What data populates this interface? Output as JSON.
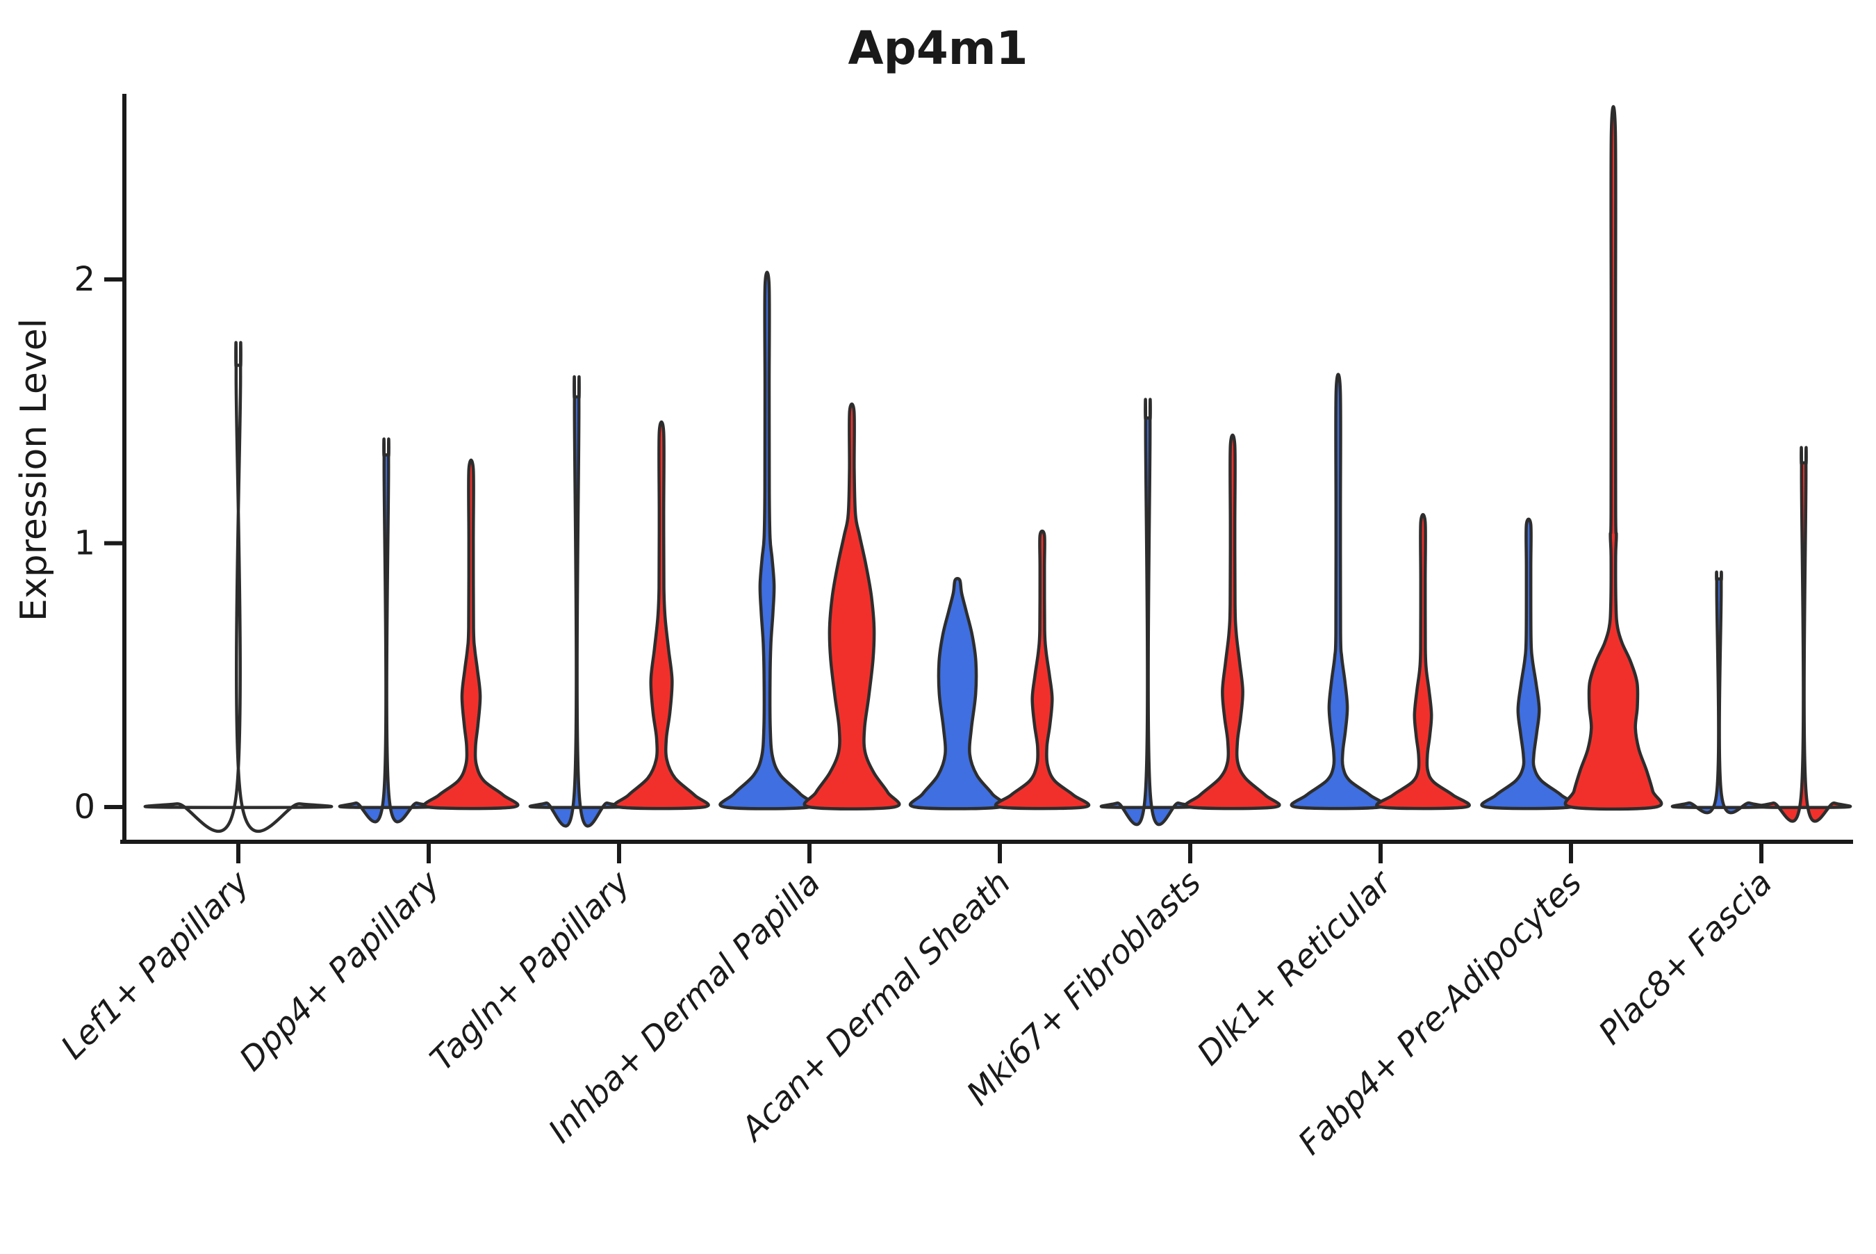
{
  "page": {
    "background": "#ffffff"
  },
  "chart_data": {
    "type": "violin",
    "title": "Ap4m1",
    "ylabel": "Expression Level",
    "xlabel": "",
    "yticks": [
      "0",
      "1",
      "2"
    ],
    "ytick_values": [
      0,
      1,
      2
    ],
    "ylim": [
      0,
      2.7
    ],
    "grid": false,
    "legend": null,
    "x_label_rotation_deg": 45,
    "split_colors": {
      "blue": "#3F6FE0",
      "red": "#F2302B"
    },
    "outline_color": "#2D2D2D",
    "axis_color": "#1A1A1A",
    "categories": [
      "Lef1+ Papillary",
      "Dpp4+ Papillary",
      "Tagln+ Papillary",
      "Inhba+ Dermal Papilla",
      "Acan+ Dermal Sheath",
      "Mki67+ Fibroblasts",
      "Dlk1+ Reticular",
      "Fabp4+ Pre-Adipocytes",
      "Plac8+ Fascia"
    ],
    "violins": [
      {
        "category_index": 0,
        "slot": "center",
        "split": null,
        "max_expression": 1.67,
        "profile": [
          [
            0,
            1
          ],
          [
            0.012,
            0.72
          ],
          [
            0.032,
            0.03
          ],
          [
            1.63,
            0.026
          ],
          [
            1.67,
            0.026
          ]
        ]
      },
      {
        "category_index": 1,
        "slot": "left",
        "split": "blue",
        "max_expression": 1.33,
        "profile": [
          [
            0,
            1
          ],
          [
            0.015,
            0.72
          ],
          [
            0.045,
            0.06
          ],
          [
            1.29,
            0.052
          ],
          [
            1.33,
            0.052
          ]
        ]
      },
      {
        "category_index": 1,
        "slot": "right",
        "split": "red",
        "max_expression": 1.28,
        "profile": [
          [
            0,
            1
          ],
          [
            0.045,
            0.76
          ],
          [
            0.1,
            0.3
          ],
          [
            0.16,
            0.125
          ],
          [
            0.23,
            0.105
          ],
          [
            0.31,
            0.16
          ],
          [
            0.42,
            0.215
          ],
          [
            0.52,
            0.15
          ],
          [
            0.6,
            0.085
          ],
          [
            0.68,
            0.058
          ],
          [
            1.0,
            0.052
          ],
          [
            1.28,
            0.052
          ]
        ]
      },
      {
        "category_index": 2,
        "slot": "left",
        "split": "blue",
        "max_expression": 1.55,
        "profile": [
          [
            0,
            1
          ],
          [
            0.015,
            0.72
          ],
          [
            0.045,
            0.06
          ],
          [
            1.51,
            0.052
          ],
          [
            1.55,
            0.052
          ]
        ]
      },
      {
        "category_index": 2,
        "slot": "right",
        "split": "red",
        "max_expression": 1.42,
        "profile": [
          [
            0,
            1
          ],
          [
            0.045,
            0.78
          ],
          [
            0.11,
            0.32
          ],
          [
            0.18,
            0.125
          ],
          [
            0.26,
            0.115
          ],
          [
            0.36,
            0.2
          ],
          [
            0.48,
            0.25
          ],
          [
            0.6,
            0.165
          ],
          [
            0.72,
            0.085
          ],
          [
            0.83,
            0.058
          ],
          [
            1.1,
            0.052
          ],
          [
            1.42,
            0.052
          ]
        ]
      },
      {
        "category_index": 3,
        "slot": "left",
        "split": "blue",
        "max_expression": 1.98,
        "profile": [
          [
            0,
            1
          ],
          [
            0.05,
            0.78
          ],
          [
            0.12,
            0.32
          ],
          [
            0.19,
            0.13
          ],
          [
            0.3,
            0.075
          ],
          [
            0.48,
            0.07
          ],
          [
            0.62,
            0.09
          ],
          [
            0.74,
            0.14
          ],
          [
            0.84,
            0.165
          ],
          [
            0.94,
            0.12
          ],
          [
            1.02,
            0.07
          ],
          [
            1.2,
            0.052
          ],
          [
            1.6,
            0.05
          ],
          [
            1.98,
            0.048
          ]
        ]
      },
      {
        "category_index": 3,
        "slot": "right",
        "split": "red",
        "max_expression": 1.5,
        "profile": [
          [
            0,
            1
          ],
          [
            0.055,
            0.85
          ],
          [
            0.13,
            0.52
          ],
          [
            0.21,
            0.31
          ],
          [
            0.3,
            0.3
          ],
          [
            0.42,
            0.4
          ],
          [
            0.56,
            0.5
          ],
          [
            0.68,
            0.525
          ],
          [
            0.8,
            0.46
          ],
          [
            0.92,
            0.33
          ],
          [
            1.03,
            0.18
          ],
          [
            1.11,
            0.085
          ],
          [
            1.28,
            0.056
          ],
          [
            1.5,
            0.052
          ]
        ]
      },
      {
        "category_index": 4,
        "slot": "left",
        "split": "blue",
        "max_expression": 0.86,
        "profile": [
          [
            0,
            1
          ],
          [
            0.05,
            0.82
          ],
          [
            0.12,
            0.46
          ],
          [
            0.2,
            0.29
          ],
          [
            0.3,
            0.33
          ],
          [
            0.43,
            0.43
          ],
          [
            0.55,
            0.435
          ],
          [
            0.65,
            0.35
          ],
          [
            0.74,
            0.21
          ],
          [
            0.81,
            0.1
          ],
          [
            0.86,
            0.055
          ]
        ]
      },
      {
        "category_index": 4,
        "slot": "right",
        "split": "red",
        "max_expression": 1.03,
        "profile": [
          [
            0,
            1
          ],
          [
            0.045,
            0.74
          ],
          [
            0.1,
            0.29
          ],
          [
            0.16,
            0.125
          ],
          [
            0.23,
            0.11
          ],
          [
            0.31,
            0.18
          ],
          [
            0.41,
            0.235
          ],
          [
            0.5,
            0.17
          ],
          [
            0.59,
            0.09
          ],
          [
            0.67,
            0.058
          ],
          [
            0.9,
            0.052
          ],
          [
            1.03,
            0.052
          ]
        ]
      },
      {
        "category_index": 5,
        "slot": "left",
        "split": "blue",
        "max_expression": 1.47,
        "profile": [
          [
            0,
            1
          ],
          [
            0.015,
            0.72
          ],
          [
            0.045,
            0.06
          ],
          [
            1.43,
            0.052
          ],
          [
            1.47,
            0.052
          ]
        ]
      },
      {
        "category_index": 5,
        "slot": "right",
        "split": "red",
        "max_expression": 1.37,
        "profile": [
          [
            0,
            1
          ],
          [
            0.045,
            0.77
          ],
          [
            0.11,
            0.3
          ],
          [
            0.17,
            0.12
          ],
          [
            0.25,
            0.115
          ],
          [
            0.34,
            0.19
          ],
          [
            0.44,
            0.24
          ],
          [
            0.55,
            0.165
          ],
          [
            0.66,
            0.085
          ],
          [
            0.77,
            0.057
          ],
          [
            1.05,
            0.052
          ],
          [
            1.37,
            0.052
          ]
        ]
      },
      {
        "category_index": 6,
        "slot": "left",
        "split": "blue",
        "max_expression": 1.58,
        "profile": [
          [
            0,
            1
          ],
          [
            0.045,
            0.75
          ],
          [
            0.1,
            0.27
          ],
          [
            0.15,
            0.115
          ],
          [
            0.21,
            0.108
          ],
          [
            0.29,
            0.17
          ],
          [
            0.38,
            0.215
          ],
          [
            0.48,
            0.155
          ],
          [
            0.57,
            0.082
          ],
          [
            0.66,
            0.056
          ],
          [
            1.1,
            0.052
          ],
          [
            1.58,
            0.05
          ]
        ]
      },
      {
        "category_index": 6,
        "slot": "right",
        "split": "red",
        "max_expression": 1.08,
        "profile": [
          [
            0,
            1
          ],
          [
            0.045,
            0.71
          ],
          [
            0.095,
            0.25
          ],
          [
            0.14,
            0.11
          ],
          [
            0.2,
            0.105
          ],
          [
            0.27,
            0.16
          ],
          [
            0.35,
            0.2
          ],
          [
            0.44,
            0.145
          ],
          [
            0.52,
            0.078
          ],
          [
            0.6,
            0.056
          ],
          [
            0.85,
            0.052
          ],
          [
            1.08,
            0.052
          ]
        ]
      },
      {
        "category_index": 7,
        "slot": "left",
        "split": "blue",
        "max_expression": 1.07,
        "profile": [
          [
            0,
            1
          ],
          [
            0.045,
            0.77
          ],
          [
            0.1,
            0.3
          ],
          [
            0.15,
            0.13
          ],
          [
            0.2,
            0.125
          ],
          [
            0.28,
            0.19
          ],
          [
            0.37,
            0.25
          ],
          [
            0.47,
            0.175
          ],
          [
            0.56,
            0.088
          ],
          [
            0.64,
            0.057
          ],
          [
            0.9,
            0.052
          ],
          [
            1.07,
            0.052
          ]
        ]
      },
      {
        "category_index": 7,
        "slot": "right",
        "split": "red",
        "max_expression": 2.56,
        "profile": [
          [
            0,
            1
          ],
          [
            0.06,
            0.93
          ],
          [
            0.14,
            0.78
          ],
          [
            0.22,
            0.6
          ],
          [
            0.3,
            0.52
          ],
          [
            0.38,
            0.565
          ],
          [
            0.47,
            0.56
          ],
          [
            0.55,
            0.41
          ],
          [
            0.62,
            0.21
          ],
          [
            0.68,
            0.1
          ],
          [
            0.76,
            0.062
          ],
          [
            0.95,
            0.054
          ],
          [
            1.03,
            0.07
          ],
          [
            1.12,
            0.054
          ],
          [
            1.8,
            0.05
          ],
          [
            2.56,
            0.048
          ]
        ]
      },
      {
        "category_index": 8,
        "slot": "left",
        "split": "blue",
        "max_expression": 0.86,
        "profile": [
          [
            0,
            1
          ],
          [
            0.015,
            0.72
          ],
          [
            0.045,
            0.06
          ],
          [
            0.82,
            0.052
          ],
          [
            0.86,
            0.052
          ]
        ]
      },
      {
        "category_index": 8,
        "slot": "right",
        "split": "red",
        "max_expression": 1.3,
        "profile": [
          [
            0,
            1
          ],
          [
            0.015,
            0.72
          ],
          [
            0.045,
            0.06
          ],
          [
            1.26,
            0.052
          ],
          [
            1.3,
            0.052
          ]
        ]
      }
    ]
  }
}
